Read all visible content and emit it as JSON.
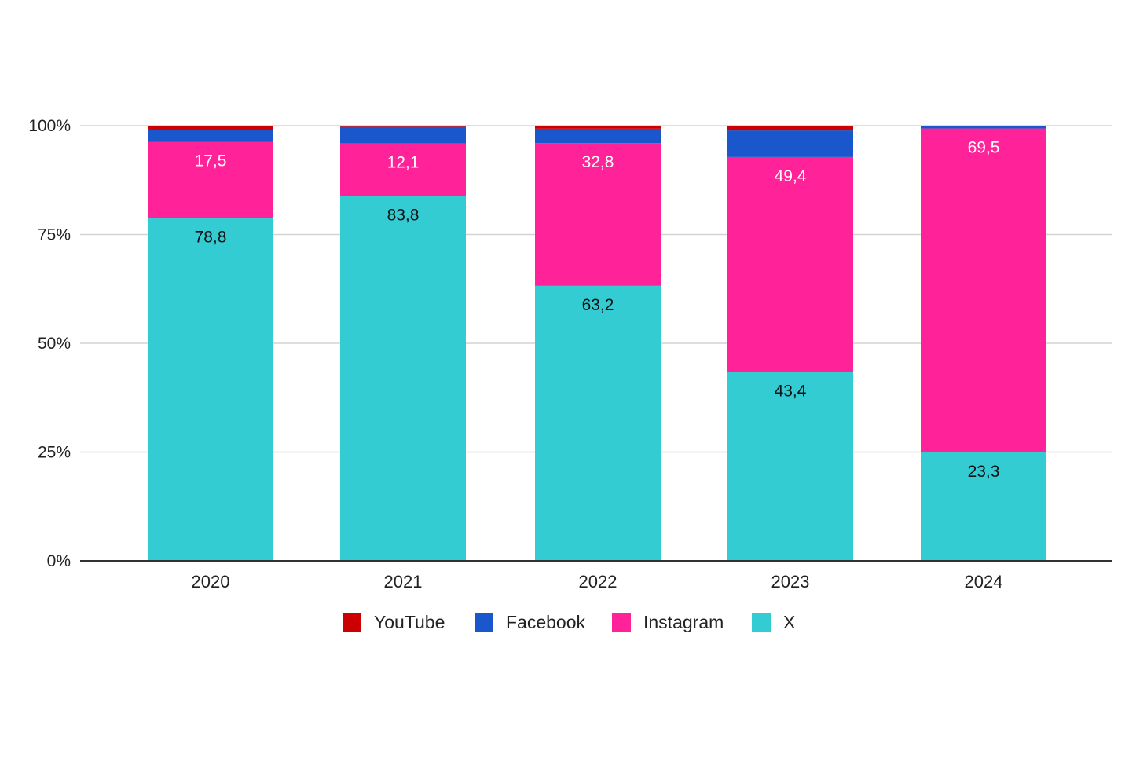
{
  "chart_data": {
    "type": "bar",
    "stacked": true,
    "normalized": true,
    "categories": [
      "2020",
      "2021",
      "2022",
      "2023",
      "2024"
    ],
    "series": [
      {
        "name": "X",
        "color": "#33CCD2",
        "values": [
          78.8,
          83.8,
          63.2,
          43.4,
          23.3
        ],
        "labels": [
          "78,8",
          "83,8",
          "63,2",
          "43,4",
          "23,3"
        ],
        "label_color": "#111111"
      },
      {
        "name": "Instagram",
        "color": "#FF2299",
        "values": [
          17.5,
          12.1,
          32.8,
          49.4,
          69.5
        ],
        "labels": [
          "17,5",
          "12,1",
          "32,8",
          "49,4",
          "69,5"
        ],
        "label_color": "#ffffff"
      },
      {
        "name": "Facebook",
        "color": "#1A56CC",
        "values": [
          2.8,
          3.8,
          3.3,
          6.1,
          0.6
        ],
        "labels": [],
        "label_color": "#ffffff"
      },
      {
        "name": "YouTube",
        "color": "#CC0000",
        "values": [
          0.9,
          0.3,
          0.7,
          1.1,
          0.0
        ],
        "labels": [],
        "label_color": "#ffffff"
      }
    ],
    "yticks": [
      "0%",
      "25%",
      "50%",
      "75%",
      "100%"
    ],
    "ylim": [
      0,
      100
    ],
    "grid": true,
    "legend": {
      "position": "bottom",
      "order": [
        "YouTube",
        "Facebook",
        "Instagram",
        "X"
      ]
    },
    "title": "",
    "xlabel": "",
    "ylabel": ""
  }
}
